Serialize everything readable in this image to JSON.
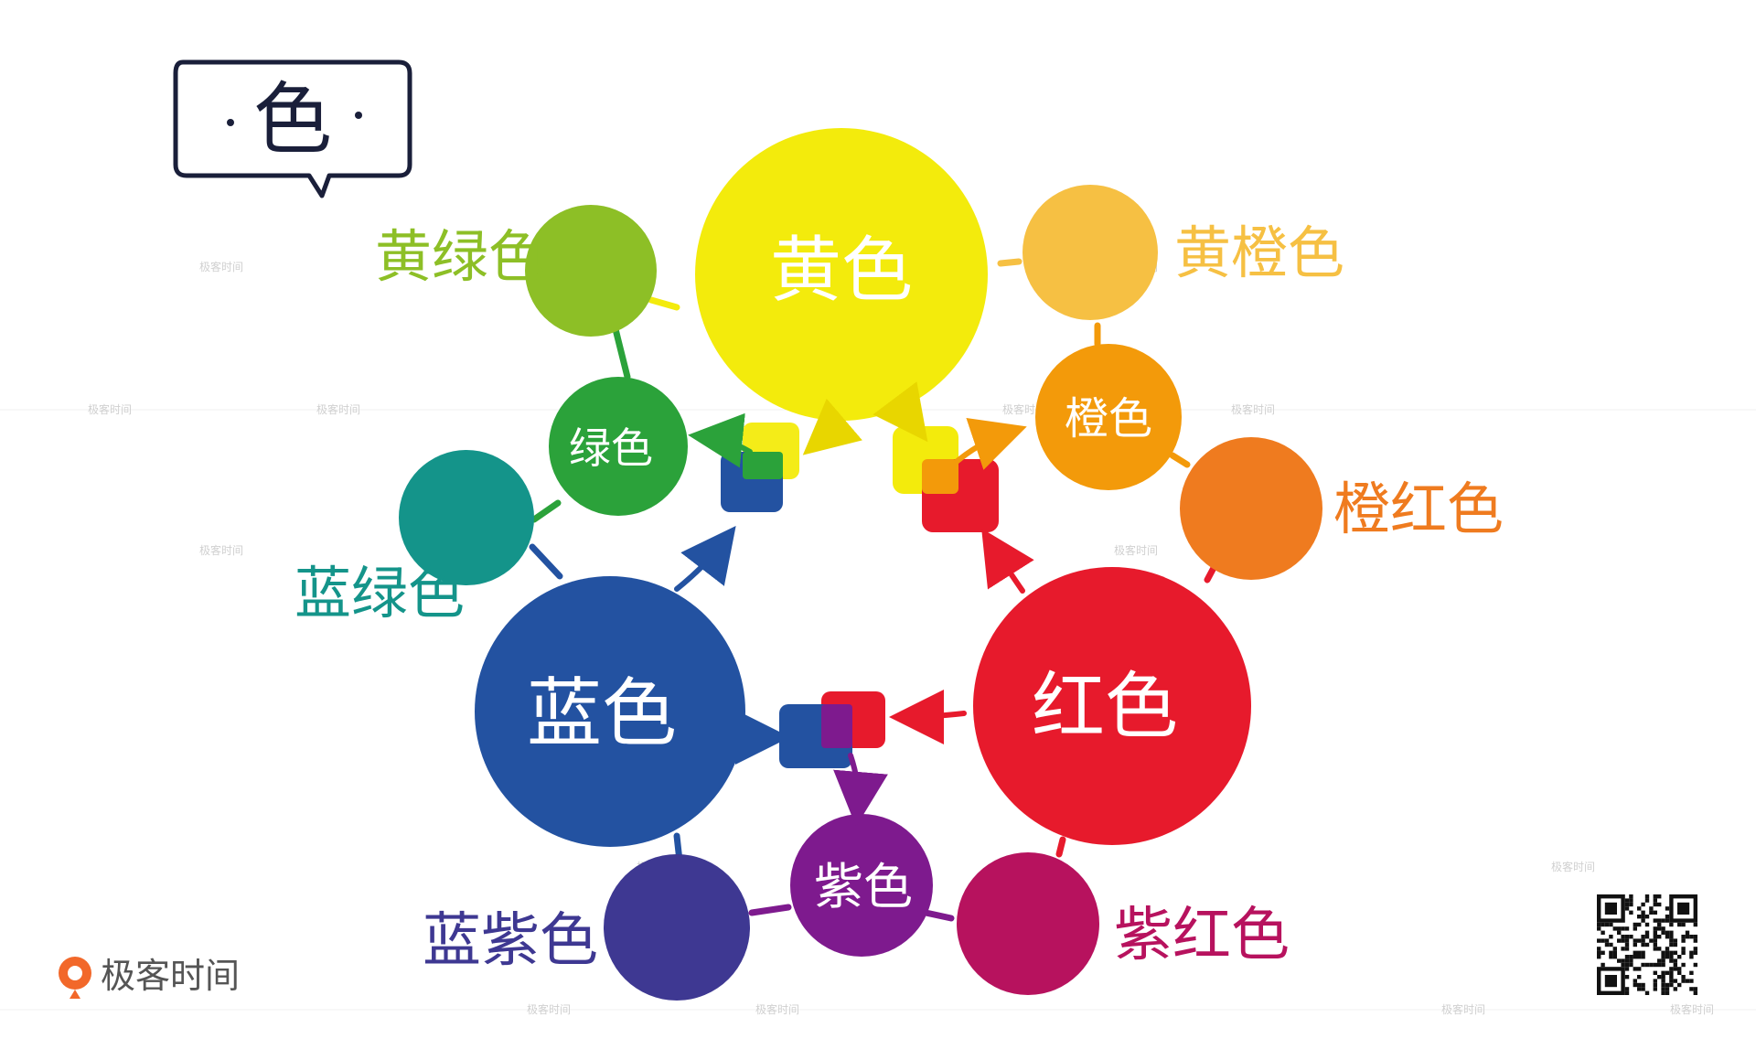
{
  "title": "色",
  "brand": {
    "name": "极客时间"
  },
  "watermark": "极客时间",
  "colors": {
    "yellow": "#F3EB0C",
    "yellow_green": "#8DBF26",
    "yellow_orange": "#F6C043",
    "green": "#2BA23A",
    "blue_green": "#14948A",
    "orange": "#F39A0A",
    "red_orange": "#EF7B1F",
    "blue": "#2352A1",
    "red": "#E71A2C",
    "purple": "#7E1A8E",
    "blue_purple": "#3E3892",
    "red_purple": "#B7125E"
  },
  "nodes": {
    "yellow": {
      "label": "黄色"
    },
    "red": {
      "label": "红色"
    },
    "blue": {
      "label": "蓝色"
    },
    "green": {
      "label": "绿色"
    },
    "orange": {
      "label": "橙色"
    },
    "purple": {
      "label": "紫色"
    },
    "yellow_green": {
      "label": "黄绿色"
    },
    "yellow_orange": {
      "label": "黄橙色"
    },
    "red_orange": {
      "label": "橙红色"
    },
    "blue_green": {
      "label": "蓝绿色"
    },
    "blue_purple": {
      "label": "蓝紫色"
    },
    "red_purple": {
      "label": "紫红色"
    }
  }
}
